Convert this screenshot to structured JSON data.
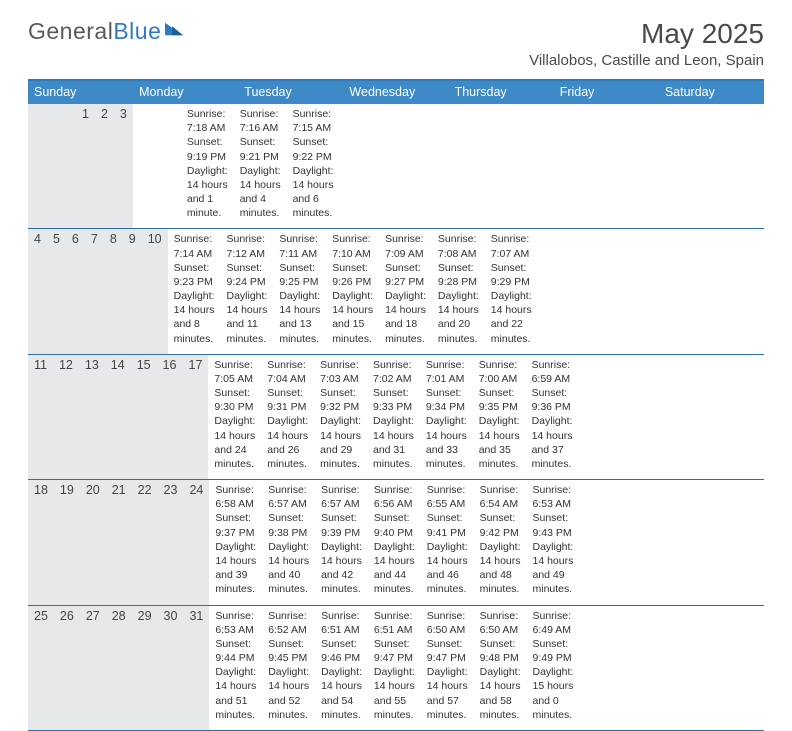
{
  "brand": {
    "part1": "General",
    "part2": "Blue"
  },
  "title": "May 2025",
  "subtitle": "Villalobos, Castille and Leon, Spain",
  "colors": {
    "header_bg": "#3d8ac7",
    "rule": "#2f6fa3",
    "daynum_bg": "#e7e8e9",
    "text": "#333333",
    "brand_gray": "#5a5a5a",
    "brand_blue": "#2f7bbf"
  },
  "dow": [
    "Sunday",
    "Monday",
    "Tuesday",
    "Wednesday",
    "Thursday",
    "Friday",
    "Saturday"
  ],
  "weeks": [
    [
      {
        "n": "",
        "info": ""
      },
      {
        "n": "",
        "info": ""
      },
      {
        "n": "",
        "info": ""
      },
      {
        "n": "",
        "info": ""
      },
      {
        "n": "1",
        "info": "Sunrise: 7:18 AM\nSunset: 9:19 PM\nDaylight: 14 hours and 1 minute."
      },
      {
        "n": "2",
        "info": "Sunrise: 7:16 AM\nSunset: 9:21 PM\nDaylight: 14 hours and 4 minutes."
      },
      {
        "n": "3",
        "info": "Sunrise: 7:15 AM\nSunset: 9:22 PM\nDaylight: 14 hours and 6 minutes."
      }
    ],
    [
      {
        "n": "4",
        "info": "Sunrise: 7:14 AM\nSunset: 9:23 PM\nDaylight: 14 hours and 8 minutes."
      },
      {
        "n": "5",
        "info": "Sunrise: 7:12 AM\nSunset: 9:24 PM\nDaylight: 14 hours and 11 minutes."
      },
      {
        "n": "6",
        "info": "Sunrise: 7:11 AM\nSunset: 9:25 PM\nDaylight: 14 hours and 13 minutes."
      },
      {
        "n": "7",
        "info": "Sunrise: 7:10 AM\nSunset: 9:26 PM\nDaylight: 14 hours and 15 minutes."
      },
      {
        "n": "8",
        "info": "Sunrise: 7:09 AM\nSunset: 9:27 PM\nDaylight: 14 hours and 18 minutes."
      },
      {
        "n": "9",
        "info": "Sunrise: 7:08 AM\nSunset: 9:28 PM\nDaylight: 14 hours and 20 minutes."
      },
      {
        "n": "10",
        "info": "Sunrise: 7:07 AM\nSunset: 9:29 PM\nDaylight: 14 hours and 22 minutes."
      }
    ],
    [
      {
        "n": "11",
        "info": "Sunrise: 7:05 AM\nSunset: 9:30 PM\nDaylight: 14 hours and 24 minutes."
      },
      {
        "n": "12",
        "info": "Sunrise: 7:04 AM\nSunset: 9:31 PM\nDaylight: 14 hours and 26 minutes."
      },
      {
        "n": "13",
        "info": "Sunrise: 7:03 AM\nSunset: 9:32 PM\nDaylight: 14 hours and 29 minutes."
      },
      {
        "n": "14",
        "info": "Sunrise: 7:02 AM\nSunset: 9:33 PM\nDaylight: 14 hours and 31 minutes."
      },
      {
        "n": "15",
        "info": "Sunrise: 7:01 AM\nSunset: 9:34 PM\nDaylight: 14 hours and 33 minutes."
      },
      {
        "n": "16",
        "info": "Sunrise: 7:00 AM\nSunset: 9:35 PM\nDaylight: 14 hours and 35 minutes."
      },
      {
        "n": "17",
        "info": "Sunrise: 6:59 AM\nSunset: 9:36 PM\nDaylight: 14 hours and 37 minutes."
      }
    ],
    [
      {
        "n": "18",
        "info": "Sunrise: 6:58 AM\nSunset: 9:37 PM\nDaylight: 14 hours and 39 minutes."
      },
      {
        "n": "19",
        "info": "Sunrise: 6:57 AM\nSunset: 9:38 PM\nDaylight: 14 hours and 40 minutes."
      },
      {
        "n": "20",
        "info": "Sunrise: 6:57 AM\nSunset: 9:39 PM\nDaylight: 14 hours and 42 minutes."
      },
      {
        "n": "21",
        "info": "Sunrise: 6:56 AM\nSunset: 9:40 PM\nDaylight: 14 hours and 44 minutes."
      },
      {
        "n": "22",
        "info": "Sunrise: 6:55 AM\nSunset: 9:41 PM\nDaylight: 14 hours and 46 minutes."
      },
      {
        "n": "23",
        "info": "Sunrise: 6:54 AM\nSunset: 9:42 PM\nDaylight: 14 hours and 48 minutes."
      },
      {
        "n": "24",
        "info": "Sunrise: 6:53 AM\nSunset: 9:43 PM\nDaylight: 14 hours and 49 minutes."
      }
    ],
    [
      {
        "n": "25",
        "info": "Sunrise: 6:53 AM\nSunset: 9:44 PM\nDaylight: 14 hours and 51 minutes."
      },
      {
        "n": "26",
        "info": "Sunrise: 6:52 AM\nSunset: 9:45 PM\nDaylight: 14 hours and 52 minutes."
      },
      {
        "n": "27",
        "info": "Sunrise: 6:51 AM\nSunset: 9:46 PM\nDaylight: 14 hours and 54 minutes."
      },
      {
        "n": "28",
        "info": "Sunrise: 6:51 AM\nSunset: 9:47 PM\nDaylight: 14 hours and 55 minutes."
      },
      {
        "n": "29",
        "info": "Sunrise: 6:50 AM\nSunset: 9:47 PM\nDaylight: 14 hours and 57 minutes."
      },
      {
        "n": "30",
        "info": "Sunrise: 6:50 AM\nSunset: 9:48 PM\nDaylight: 14 hours and 58 minutes."
      },
      {
        "n": "31",
        "info": "Sunrise: 6:49 AM\nSunset: 9:49 PM\nDaylight: 15 hours and 0 minutes."
      }
    ]
  ]
}
